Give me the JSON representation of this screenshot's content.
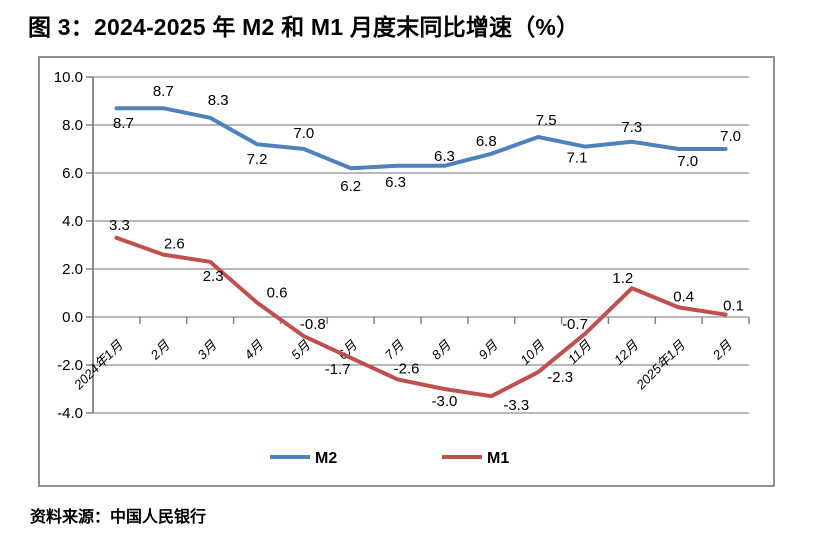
{
  "figure": {
    "title": "图 3：2024-2025 年 M2 和 M1 月度末同比增速（%）",
    "source": "资料来源：中国人民银行"
  },
  "chart_data": {
    "type": "line",
    "title": "图 3：2024-2025 年 M2 和 M1 月度末同比增速（%）",
    "xlabel": "",
    "ylabel": "",
    "categories": [
      "2024年1月",
      "2月",
      "3月",
      "4月",
      "5月",
      "6月",
      "7月",
      "8月",
      "9月",
      "10月",
      "11月",
      "12月",
      "2025年1月",
      "2月"
    ],
    "series": [
      {
        "name": "M2",
        "color": "#4F81BD",
        "values": [
          8.7,
          8.7,
          8.3,
          7.2,
          7.0,
          6.2,
          6.3,
          6.3,
          6.8,
          7.5,
          7.1,
          7.3,
          7.0,
          7.0
        ],
        "label_offsets": [
          [
            7,
            20
          ],
          [
            0,
            -12
          ],
          [
            8,
            -13
          ],
          [
            0,
            20
          ],
          [
            0,
            -11
          ],
          [
            0,
            23
          ],
          [
            -2,
            21
          ],
          [
            0,
            -5
          ],
          [
            -5,
            -8
          ],
          [
            8,
            -12
          ],
          [
            -8,
            16
          ],
          [
            0,
            -10
          ],
          [
            9,
            17
          ],
          [
            5,
            -8
          ]
        ]
      },
      {
        "name": "M1",
        "color": "#C0504D",
        "values": [
          3.3,
          2.6,
          2.3,
          0.6,
          -0.8,
          -1.7,
          -2.6,
          -3.0,
          -3.3,
          -2.3,
          -0.7,
          1.2,
          0.4,
          0.1
        ],
        "label_offsets": [
          [
            3,
            -8
          ],
          [
            11,
            -6
          ],
          [
            3,
            19
          ],
          [
            20,
            -5
          ],
          [
            9,
            -7
          ],
          [
            -13,
            16
          ],
          [
            9,
            -6
          ],
          [
            0,
            17
          ],
          [
            25,
            14
          ],
          [
            22,
            10
          ],
          [
            -10,
            -5
          ],
          [
            -9,
            -5
          ],
          [
            5,
            -6
          ],
          [
            8,
            -4
          ]
        ]
      }
    ],
    "ylim": [
      -4.0,
      10.0
    ],
    "ytick_step": 2.0,
    "ytick_labels": [
      "10.0",
      "8.0",
      "6.0",
      "4.0",
      "2.0",
      "0.0",
      "-2.0",
      "-4.0"
    ],
    "grid": true,
    "legend_position": "bottom-center",
    "frame_color": "#909090",
    "grid_color": "#8C8C8C",
    "axis_color": "#808080",
    "label_color": "#000000"
  }
}
